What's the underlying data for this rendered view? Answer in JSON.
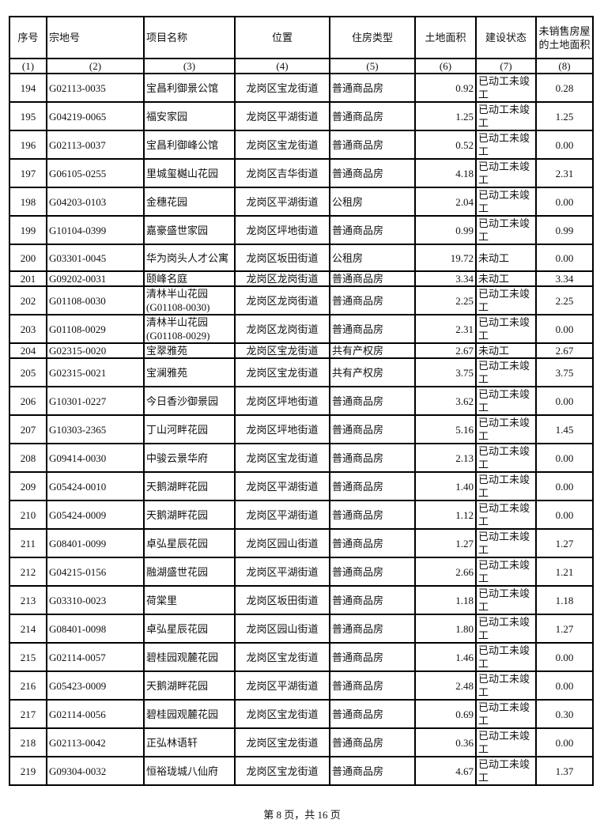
{
  "headers": [
    "序号",
    "宗地号",
    "项目名称",
    "位置",
    "住房类型",
    "土地面积",
    "建设状态",
    "未销售房屋的土地面积"
  ],
  "column_numbers": [
    "(1)",
    "(2)",
    "(3)",
    "(4)",
    "(5)",
    "(6)",
    "(7)",
    "(8)"
  ],
  "rows": [
    [
      "194",
      "G02113-0035",
      "宝昌利御景公馆",
      "龙岗区宝龙街道",
      "普通商品房",
      "0.92",
      "已动工未竣工",
      "0.28"
    ],
    [
      "195",
      "G04219-0065",
      "福安家园",
      "龙岗区平湖街道",
      "普通商品房",
      "1.25",
      "已动工未竣工",
      "1.25"
    ],
    [
      "196",
      "G02113-0037",
      "宝昌利御峰公馆",
      "龙岗区宝龙街道",
      "普通商品房",
      "0.52",
      "已动工未竣工",
      "0.00"
    ],
    [
      "197",
      "G06105-0255",
      "里城玺樾山花园",
      "龙岗区吉华街道",
      "普通商品房",
      "4.18",
      "已动工未竣工",
      "2.31"
    ],
    [
      "198",
      "G04203-0103",
      "金穗花园",
      "龙岗区平湖街道",
      "公租房",
      "2.04",
      "已动工未竣工",
      "0.00"
    ],
    [
      "199",
      "G10104-0399",
      "嘉豪盛世家园",
      "龙岗区坪地街道",
      "普通商品房",
      "0.99",
      "已动工未竣工",
      "0.99"
    ],
    [
      "200",
      "G03301-0045",
      "华为岗头人才公寓",
      "龙岗区坂田街道",
      "公租房",
      "19.72",
      "未动工",
      "0.00"
    ],
    [
      "201",
      "G09202-0031",
      "颐峰名庭",
      "龙岗区龙岗街道",
      "普通商品房",
      "3.34",
      "未动工",
      "3.34"
    ],
    [
      "202",
      "G01108-0030",
      "清林半山花园(G01108-0030)",
      "龙岗区龙岗街道",
      "普通商品房",
      "2.25",
      "已动工未竣工",
      "2.25"
    ],
    [
      "203",
      "G01108-0029",
      "清林半山花园(G01108-0029)",
      "龙岗区龙岗街道",
      "普通商品房",
      "2.31",
      "已动工未竣工",
      "0.00"
    ],
    [
      "204",
      "G02315-0020",
      "宝翠雅苑",
      "龙岗区宝龙街道",
      "共有产权房",
      "2.67",
      "未动工",
      "2.67"
    ],
    [
      "205",
      "G02315-0021",
      "宝澜雅苑",
      "龙岗区宝龙街道",
      "共有产权房",
      "3.75",
      "已动工未竣工",
      "3.75"
    ],
    [
      "206",
      "G10301-0227",
      "今日香沙御景园",
      "龙岗区坪地街道",
      "普通商品房",
      "3.62",
      "已动工未竣工",
      "0.00"
    ],
    [
      "207",
      "G10303-2365",
      "丁山河畔花园",
      "龙岗区坪地街道",
      "普通商品房",
      "5.16",
      "已动工未竣工",
      "1.45"
    ],
    [
      "208",
      "G09414-0030",
      "中骏云景华府",
      "龙岗区宝龙街道",
      "普通商品房",
      "2.13",
      "已动工未竣工",
      "0.00"
    ],
    [
      "209",
      "G05424-0010",
      "天鹅湖畔花园",
      "龙岗区平湖街道",
      "普通商品房",
      "1.40",
      "已动工未竣工",
      "0.00"
    ],
    [
      "210",
      "G05424-0009",
      "天鹅湖畔花园",
      "龙岗区平湖街道",
      "普通商品房",
      "1.12",
      "已动工未竣工",
      "0.00"
    ],
    [
      "211",
      "G08401-0099",
      "卓弘星辰花园",
      "龙岗区园山街道",
      "普通商品房",
      "1.27",
      "已动工未竣工",
      "1.27"
    ],
    [
      "212",
      "G04215-0156",
      "融湖盛世花园",
      "龙岗区平湖街道",
      "普通商品房",
      "2.66",
      "已动工未竣工",
      "1.21"
    ],
    [
      "213",
      "G03310-0023",
      "荷棠里",
      "龙岗区坂田街道",
      "普通商品房",
      "1.18",
      "已动工未竣工",
      "1.18"
    ],
    [
      "214",
      "G08401-0098",
      "卓弘星辰花园",
      "龙岗区园山街道",
      "普通商品房",
      "1.80",
      "已动工未竣工",
      "1.27"
    ],
    [
      "215",
      "G02114-0057",
      "碧桂园观麓花园",
      "龙岗区宝龙街道",
      "普通商品房",
      "1.46",
      "已动工未竣工",
      "0.00"
    ],
    [
      "216",
      "G05423-0009",
      "天鹅湖畔花园",
      "龙岗区平湖街道",
      "普通商品房",
      "2.48",
      "已动工未竣工",
      "0.00"
    ],
    [
      "217",
      "G02114-0056",
      "碧桂园观麓花园",
      "龙岗区宝龙街道",
      "普通商品房",
      "0.69",
      "已动工未竣工",
      "0.30"
    ],
    [
      "218",
      "G02113-0042",
      "正弘林语轩",
      "龙岗区宝龙街道",
      "普通商品房",
      "0.36",
      "已动工未竣工",
      "0.00"
    ],
    [
      "219",
      "G09304-0032",
      "恒裕珑城八仙府",
      "龙岗区宝龙街道",
      "普通商品房",
      "4.67",
      "已动工未竣工",
      "1.37"
    ]
  ],
  "footer": "第 8 页，共 16 页"
}
